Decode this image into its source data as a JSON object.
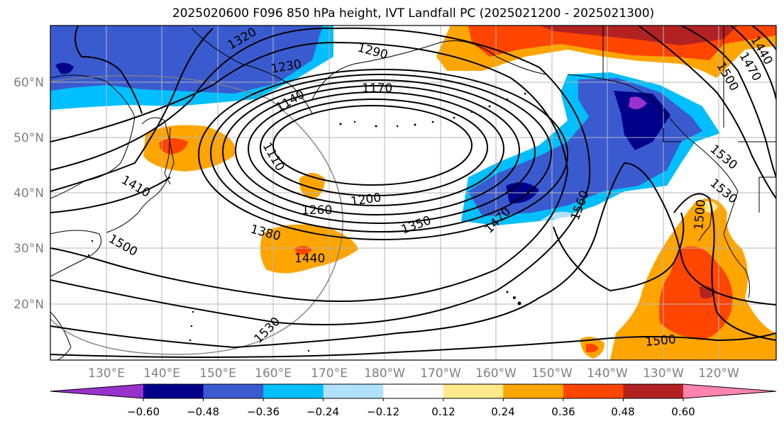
{
  "title": "2025020600 F096 850 hPa height, IVT Landfall PC (2025021200 - 2025021300)",
  "lat_labels": [
    "60°N",
    "50°N",
    "40°N",
    "30°N",
    "20°N"
  ],
  "lon_labels": [
    "130°E",
    "140°E",
    "150°E",
    "160°E",
    "170°E",
    "180°W",
    "170°W",
    "160°W",
    "150°W",
    "140°W",
    "130°W",
    "120°W"
  ],
  "contour_labels": [
    "1320",
    "1290",
    "1230",
    "1170",
    "1140",
    "1110",
    "1410",
    "1200",
    "1260",
    "1350",
    "1470",
    "1560",
    "1380",
    "1440",
    "1500",
    "1530",
    "1500",
    "1530",
    "1500",
    "1470",
    "1440",
    "1500",
    "1530"
  ],
  "colorbar": {
    "ticks": [
      "−0.60",
      "−0.48",
      "−0.36",
      "−0.24",
      "−0.12",
      "0.12",
      "0.24",
      "0.36",
      "0.48",
      "0.60"
    ],
    "colors": [
      "#9932cc",
      "#00008b",
      "#3a5bd0",
      "#00bfff",
      "#b0e2ff",
      "#ffffff",
      "#ffe98a",
      "#ffa500",
      "#ff4500",
      "#b22222",
      "#ff85b0"
    ]
  }
}
